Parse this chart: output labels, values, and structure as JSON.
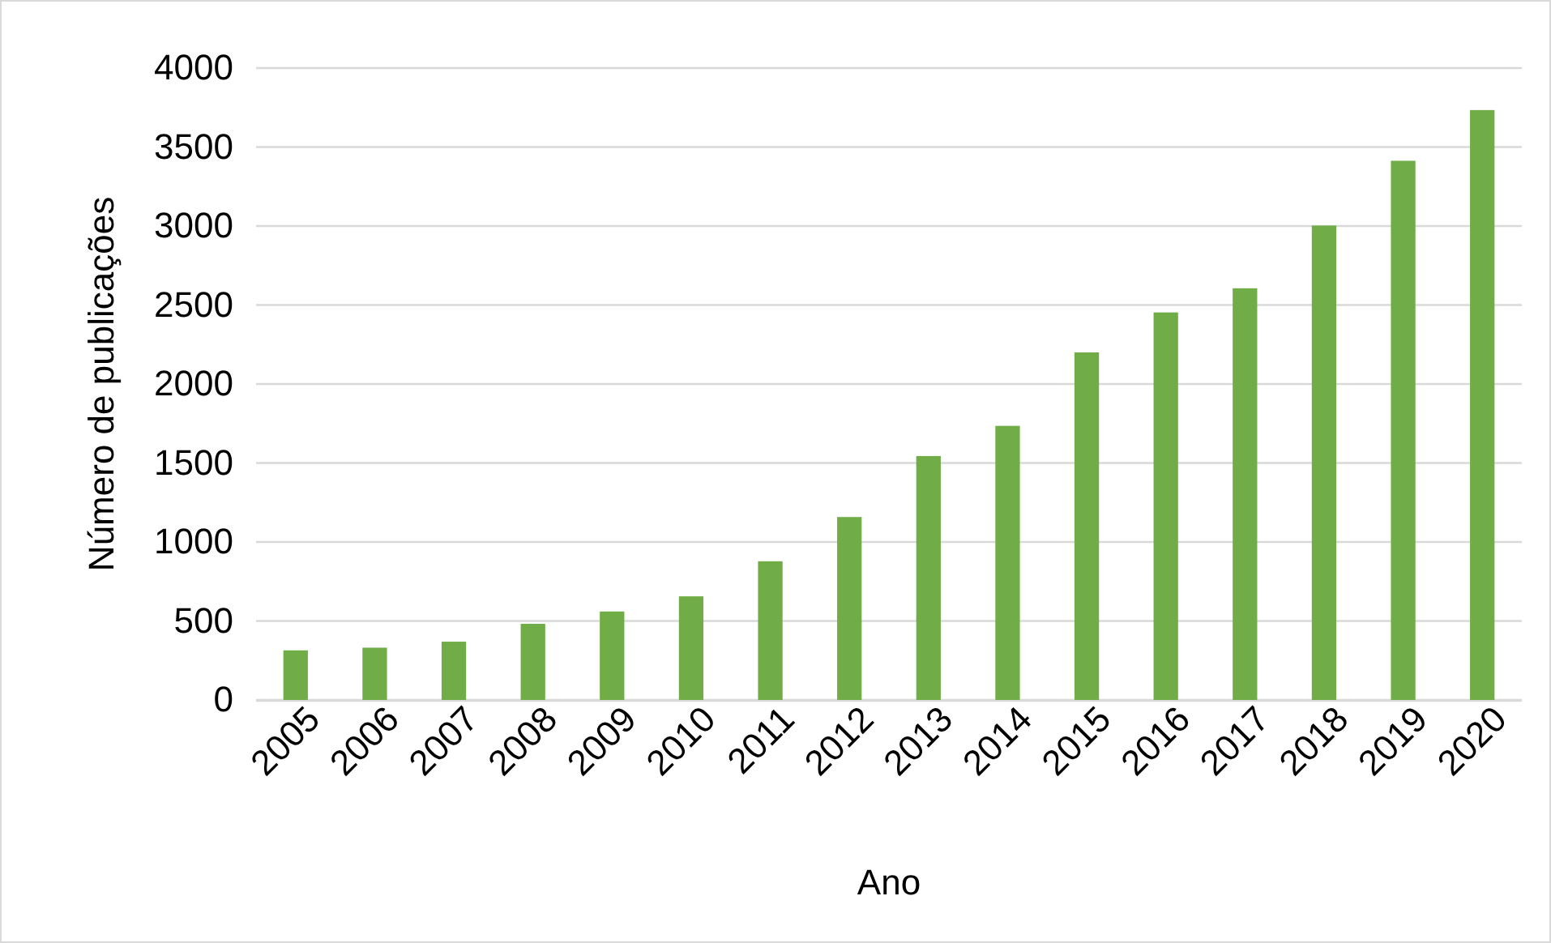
{
  "chart_data": {
    "type": "bar",
    "xlabel": "Ano",
    "ylabel": "Número de publicações",
    "categories": [
      "2005",
      "2006",
      "2007",
      "2008",
      "2009",
      "2010",
      "2011",
      "2012",
      "2013",
      "2014",
      "2015",
      "2016",
      "2017",
      "2018",
      "2019",
      "2020"
    ],
    "values": [
      314,
      331,
      369,
      482,
      560,
      656,
      878,
      1158,
      1544,
      1735,
      2200,
      2453,
      2606,
      3003,
      3413,
      3734
    ],
    "color": "#70ad47",
    "ylim": [
      0,
      4000
    ],
    "yticks": [
      0,
      500,
      1000,
      1500,
      2000,
      2500,
      3000,
      3500,
      4000
    ],
    "grid": "y"
  }
}
